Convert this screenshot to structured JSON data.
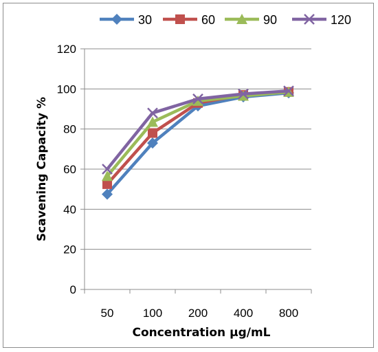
{
  "chart_data": {
    "type": "line",
    "title": "",
    "xlabel": "Concentration µg/mL",
    "ylabel": "Scavening Capacity %",
    "categories": [
      "50",
      "100",
      "200",
      "400",
      "800"
    ],
    "ylim": [
      0,
      120
    ],
    "yticks": [
      "0",
      "20",
      "40",
      "60",
      "80",
      "100",
      "120"
    ],
    "grid": "horizontal",
    "legend_position": "top",
    "series": [
      {
        "name": "30",
        "color": "#4f81bd",
        "marker": "diamond",
        "values": [
          47.5,
          73,
          91.5,
          96,
          98
        ]
      },
      {
        "name": "60",
        "color": "#c0504d",
        "marker": "square",
        "values": [
          52.5,
          78,
          93,
          97,
          98.5
        ]
      },
      {
        "name": "90",
        "color": "#9bbb59",
        "marker": "triangle",
        "values": [
          56.5,
          83.5,
          94,
          96.5,
          98.5
        ]
      },
      {
        "name": "120",
        "color": "#8064a2",
        "marker": "x",
        "values": [
          60,
          88,
          95,
          97.5,
          99
        ]
      }
    ]
  }
}
